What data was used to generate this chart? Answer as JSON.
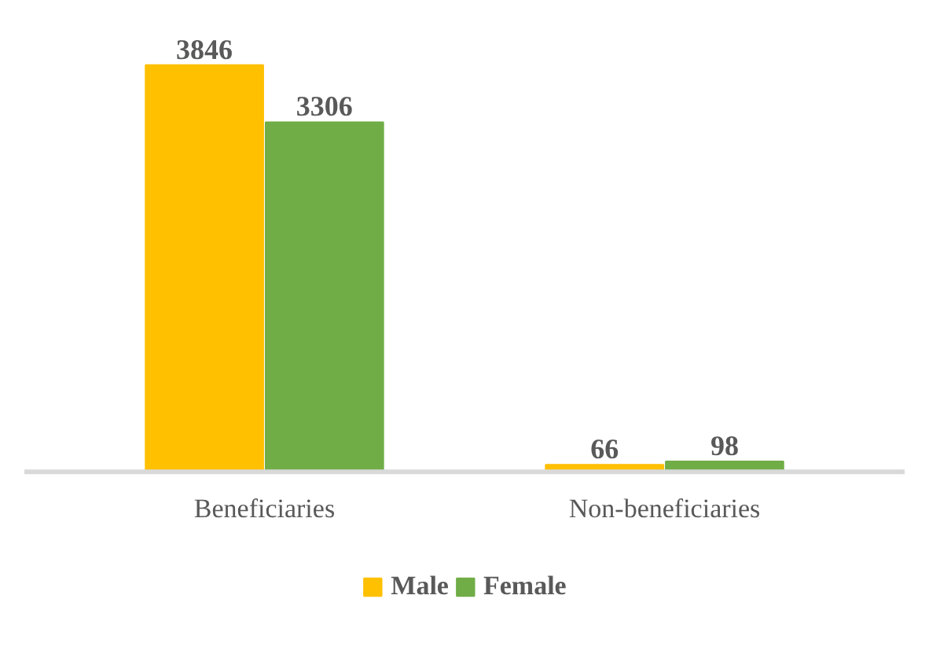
{
  "chart_data": {
    "type": "bar",
    "categories": [
      "Beneficiaries",
      "Non-beneficiaries"
    ],
    "series": [
      {
        "name": "Male",
        "color": "#ffc000",
        "values": [
          3846,
          66
        ]
      },
      {
        "name": "Female",
        "color": "#70ad47",
        "values": [
          3306,
          98
        ]
      }
    ],
    "data_labels": true,
    "legend": "bottom",
    "grid": false
  }
}
